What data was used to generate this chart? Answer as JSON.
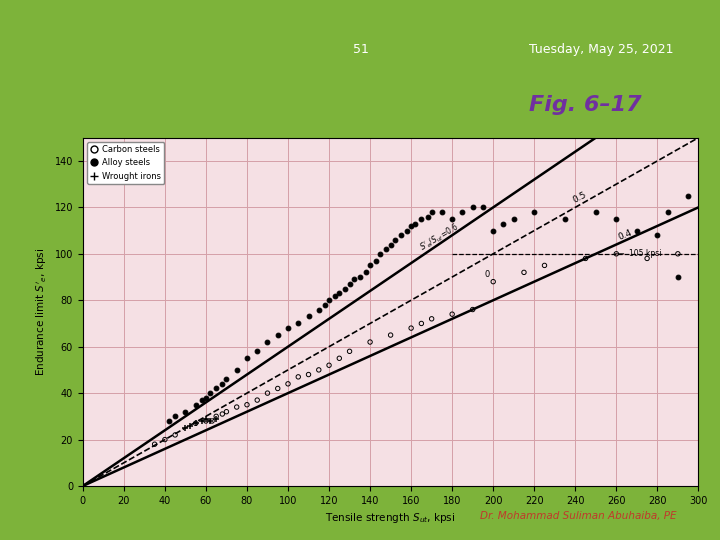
{
  "slide_bg": "#7db33a",
  "content_bg": "#ffffff",
  "header_bg": "#7a6f5a",
  "header_text_color": "#ffffff",
  "header_slide_num": "51",
  "header_date": "Tuesday, May 25, 2021",
  "title_color": "#7db33a",
  "fig_label": "Fig. 6–17",
  "fig_label_color": "#7030a0",
  "footer_text": "Dr. Mohammad Suliman Abuhaiba, PE",
  "footer_color": "#c0392b",
  "plot_bg": "#f5e0e4",
  "grid_color": "#d4a0a8",
  "xlabel": "Tensile strength $S_{ut}$, kpsi",
  "ylabel": "Endurance limit $S'_e$, kpsi",
  "xlim": [
    0,
    300
  ],
  "ylim": [
    0,
    150
  ],
  "xticks": [
    0,
    20,
    40,
    60,
    80,
    100,
    120,
    140,
    160,
    180,
    200,
    220,
    240,
    260,
    280,
    300
  ],
  "yticks": [
    0,
    20,
    40,
    60,
    80,
    100,
    120,
    140
  ],
  "carbon_x": [
    35,
    40,
    45,
    55,
    60,
    63,
    65,
    68,
    70,
    75,
    80,
    85,
    90,
    95,
    100,
    105,
    110,
    115,
    120,
    125,
    130,
    140,
    150,
    160,
    165,
    170,
    180,
    190,
    200,
    215,
    225,
    245,
    260,
    275,
    290
  ],
  "carbon_y": [
    18,
    20,
    22,
    27,
    28,
    28,
    30,
    31,
    32,
    34,
    35,
    37,
    40,
    42,
    44,
    47,
    48,
    50,
    52,
    55,
    58,
    62,
    65,
    68,
    70,
    72,
    74,
    76,
    88,
    92,
    95,
    98,
    100,
    98,
    100
  ],
  "alloy_x": [
    42,
    45,
    50,
    55,
    58,
    60,
    62,
    65,
    68,
    70,
    75,
    80,
    85,
    90,
    95,
    100,
    105,
    110,
    115,
    118,
    120,
    123,
    125,
    128,
    130,
    132,
    135,
    138,
    140,
    143,
    145,
    148,
    150,
    152,
    155,
    158,
    160,
    162,
    165,
    168,
    170,
    175,
    180,
    185,
    190,
    195,
    200,
    205,
    210,
    220,
    235,
    250,
    260,
    270,
    280,
    285,
    290,
    295
  ],
  "alloy_y": [
    28,
    30,
    32,
    35,
    37,
    38,
    40,
    42,
    44,
    46,
    50,
    55,
    58,
    62,
    65,
    68,
    70,
    73,
    76,
    78,
    80,
    82,
    83,
    85,
    87,
    89,
    90,
    92,
    95,
    97,
    100,
    102,
    104,
    106,
    108,
    110,
    112,
    113,
    115,
    116,
    118,
    118,
    115,
    118,
    120,
    120,
    110,
    113,
    115,
    118,
    115,
    118,
    115,
    110,
    108,
    118,
    90,
    125
  ],
  "wrought_x": [
    50,
    52,
    55,
    58,
    60,
    62,
    65
  ],
  "wrought_y": [
    25,
    26,
    27,
    28,
    29,
    28,
    29
  ]
}
